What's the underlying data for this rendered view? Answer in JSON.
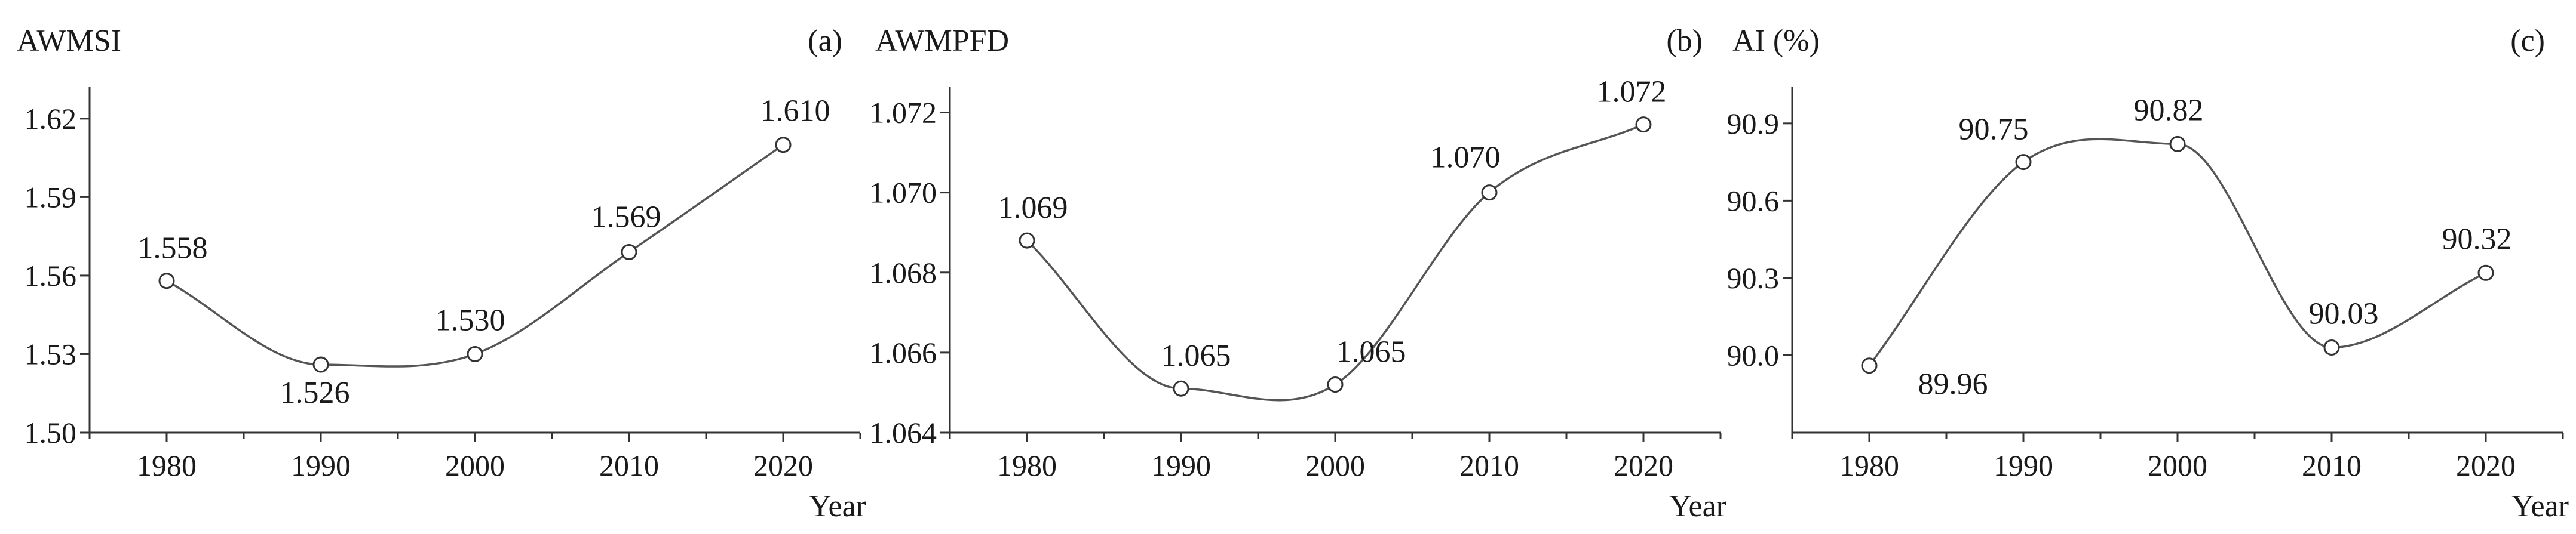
{
  "chart_data": [
    {
      "type": "line",
      "panel_label": "(a)",
      "ylabel": "AWMSI",
      "xlabel": "Year",
      "x": [
        1980,
        1990,
        2000,
        2010,
        2020
      ],
      "y": [
        1.558,
        1.526,
        1.53,
        1.569,
        1.61
      ],
      "data_labels": [
        "1.558",
        "1.526",
        "1.530",
        "1.569",
        "1.610"
      ],
      "yticks": [
        "1.50",
        "1.53",
        "1.56",
        "1.59",
        "1.62"
      ],
      "ytick_values": [
        1.5,
        1.53,
        1.56,
        1.59,
        1.62
      ],
      "ylim": [
        1.5,
        1.63
      ],
      "xticks": [
        "1980",
        "1990",
        "2000",
        "2010",
        "2020"
      ],
      "xlim": [
        1975,
        2025
      ],
      "grid": false,
      "smooth": true
    },
    {
      "type": "line",
      "panel_label": "(b)",
      "ylabel": "AWMPFD",
      "xlabel": "Year",
      "x": [
        1980,
        1990,
        2000,
        2010,
        2020
      ],
      "y": [
        1.0688,
        1.0651,
        1.0652,
        1.07,
        1.0717
      ],
      "data_labels": [
        "1.069",
        "1.065",
        "1.065",
        "1.070",
        "1.072"
      ],
      "yticks": [
        "1.064",
        "1.066",
        "1.068",
        "1.070",
        "1.072"
      ],
      "ytick_values": [
        1.064,
        1.066,
        1.068,
        1.07,
        1.072
      ],
      "ylim": [
        1.064,
        1.0725
      ],
      "xticks": [
        "1980",
        "1990",
        "2000",
        "2010",
        "2020"
      ],
      "xlim": [
        1975,
        2025
      ],
      "grid": false,
      "smooth": true
    },
    {
      "type": "line",
      "panel_label": "(c)",
      "ylabel": "AI (%)",
      "xlabel": "Year",
      "x": [
        1980,
        1990,
        2000,
        2010,
        2020
      ],
      "y": [
        89.96,
        90.75,
        90.82,
        90.03,
        90.32
      ],
      "data_labels": [
        "89.96",
        "90.75",
        "90.82",
        "90.03",
        "90.32"
      ],
      "yticks": [
        "90.0",
        "90.3",
        "90.6",
        "90.9"
      ],
      "ytick_values": [
        90.0,
        90.3,
        90.6,
        90.9
      ],
      "ylim": [
        89.7,
        91.02
      ],
      "xticks": [
        "1980",
        "1990",
        "2000",
        "2010",
        "2020"
      ],
      "xlim": [
        1975,
        2025
      ],
      "grid": false,
      "smooth": true
    }
  ]
}
